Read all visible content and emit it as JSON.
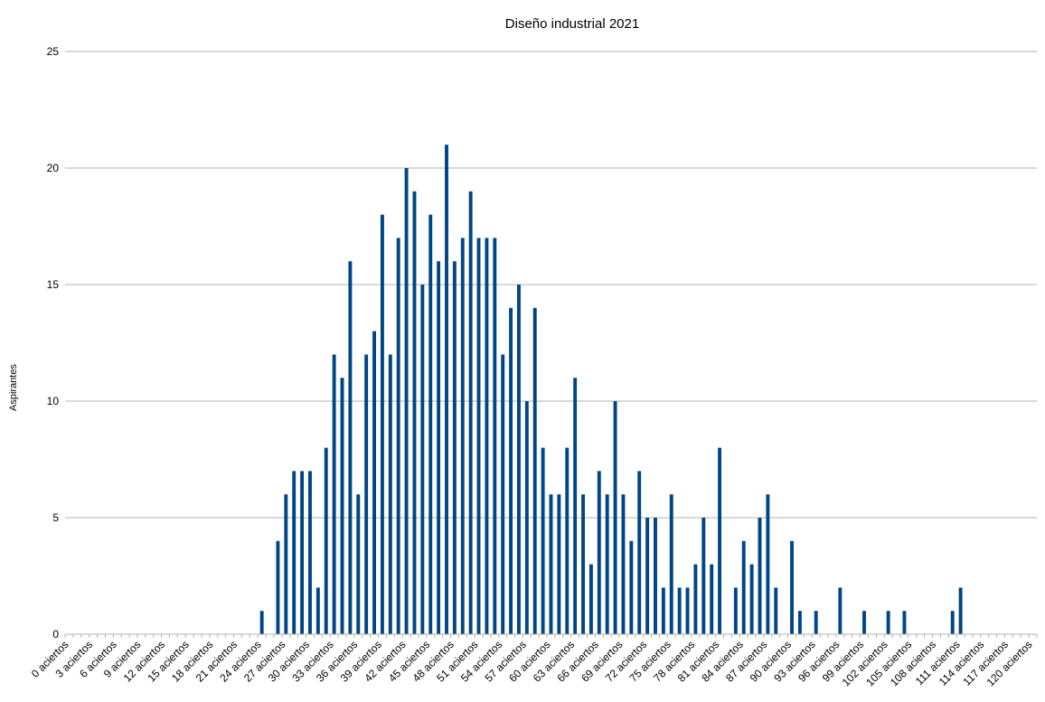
{
  "chart_data": {
    "type": "bar",
    "title": "Diseño industrial 2021",
    "xlabel": "",
    "ylabel": "Aspirantes",
    "ylim": [
      0,
      25
    ],
    "yticks": [
      0,
      5,
      10,
      15,
      20,
      25
    ],
    "grid": true,
    "legend": "none",
    "bar_color": "#004586",
    "categories": [
      "0 aciertos",
      "1 aciertos",
      "2 aciertos",
      "3 aciertos",
      "4 aciertos",
      "5 aciertos",
      "6 aciertos",
      "7 aciertos",
      "8 aciertos",
      "9 aciertos",
      "10 aciertos",
      "11 aciertos",
      "12 aciertos",
      "13 aciertos",
      "14 aciertos",
      "15 aciertos",
      "16 aciertos",
      "17 aciertos",
      "18 aciertos",
      "19 aciertos",
      "20 aciertos",
      "21 aciertos",
      "22 aciertos",
      "23 aciertos",
      "24 aciertos",
      "25 aciertos",
      "26 aciertos",
      "27 aciertos",
      "28 aciertos",
      "29 aciertos",
      "30 aciertos",
      "31 aciertos",
      "32 aciertos",
      "33 aciertos",
      "34 aciertos",
      "35 aciertos",
      "36 aciertos",
      "37 aciertos",
      "38 aciertos",
      "39 aciertos",
      "40 aciertos",
      "41 aciertos",
      "42 aciertos",
      "43 aciertos",
      "44 aciertos",
      "45 aciertos",
      "46 aciertos",
      "47 aciertos",
      "48 aciertos",
      "49 aciertos",
      "50 aciertos",
      "51 aciertos",
      "52 aciertos",
      "53 aciertos",
      "54 aciertos",
      "55 aciertos",
      "56 aciertos",
      "57 aciertos",
      "58 aciertos",
      "59 aciertos",
      "60 aciertos",
      "61 aciertos",
      "62 aciertos",
      "63 aciertos",
      "64 aciertos",
      "65 aciertos",
      "66 aciertos",
      "67 aciertos",
      "68 aciertos",
      "69 aciertos",
      "70 aciertos",
      "71 aciertos",
      "72 aciertos",
      "73 aciertos",
      "74 aciertos",
      "75 aciertos",
      "76 aciertos",
      "77 aciertos",
      "78 aciertos",
      "79 aciertos",
      "80 aciertos",
      "81 aciertos",
      "82 aciertos",
      "83 aciertos",
      "84 aciertos",
      "85 aciertos",
      "86 aciertos",
      "87 aciertos",
      "88 aciertos",
      "89 aciertos",
      "90 aciertos",
      "91 aciertos",
      "92 aciertos",
      "93 aciertos",
      "94 aciertos",
      "95 aciertos",
      "96 aciertos",
      "97 aciertos",
      "98 aciertos",
      "99 aciertos",
      "100 aciertos",
      "101 aciertos",
      "102 aciertos",
      "103 aciertos",
      "104 aciertos",
      "105 aciertos",
      "106 aciertos",
      "107 aciertos",
      "108 aciertos",
      "109 aciertos",
      "110 aciertos",
      "111 aciertos",
      "112 aciertos",
      "113 aciertos",
      "114 aciertos",
      "115 aciertos",
      "116 aciertos",
      "117 aciertos",
      "118 aciertos",
      "119 aciertos",
      "120 aciertos"
    ],
    "tick_every": 3,
    "values": [
      0,
      0,
      0,
      0,
      0,
      0,
      0,
      0,
      0,
      0,
      0,
      0,
      0,
      0,
      0,
      0,
      0,
      0,
      0,
      0,
      0,
      0,
      0,
      0,
      1,
      0,
      4,
      6,
      7,
      7,
      7,
      2,
      8,
      12,
      11,
      16,
      6,
      12,
      13,
      18,
      12,
      17,
      20,
      19,
      15,
      18,
      16,
      21,
      16,
      17,
      19,
      17,
      17,
      17,
      12,
      14,
      15,
      10,
      14,
      8,
      6,
      6,
      8,
      11,
      6,
      3,
      7,
      6,
      10,
      6,
      4,
      7,
      5,
      5,
      2,
      6,
      2,
      2,
      3,
      5,
      3,
      8,
      0,
      2,
      4,
      3,
      5,
      6,
      2,
      0,
      4,
      1,
      0,
      1,
      0,
      0,
      2,
      0,
      0,
      1,
      0,
      0,
      1,
      0,
      1,
      0,
      0,
      0,
      0,
      0,
      1,
      2,
      0,
      0,
      0,
      0,
      0,
      0,
      0,
      0,
      0
    ]
  }
}
